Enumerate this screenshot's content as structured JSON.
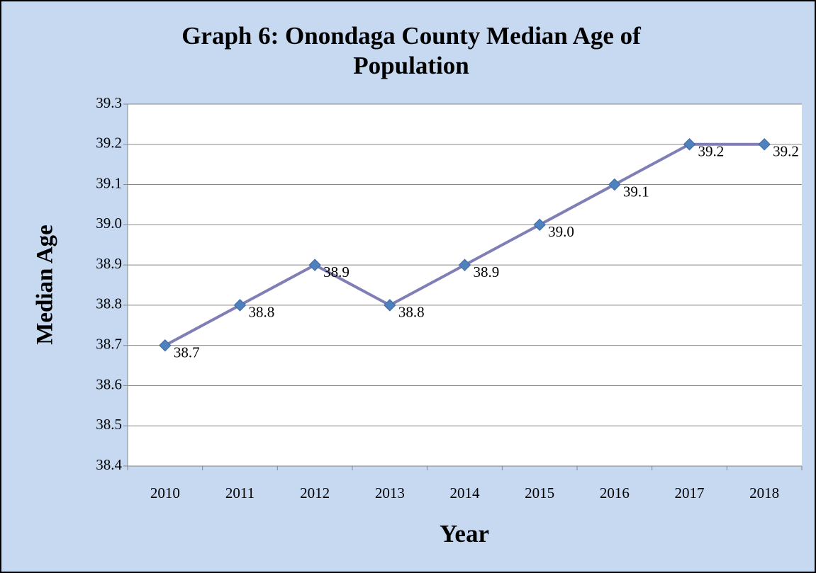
{
  "chart_data": {
    "type": "line",
    "title": "Graph 6:  Onondaga County Median Age of Population",
    "x_label": "Year",
    "y_label": "Median Age",
    "categories": [
      "2010",
      "2011",
      "2012",
      "2013",
      "2014",
      "2015",
      "2016",
      "2017",
      "2018"
    ],
    "series": [
      {
        "name": "Median Age",
        "color": "#7f7fb5",
        "marker_color": "#4f81bd",
        "values": [
          38.7,
          38.8,
          38.9,
          38.8,
          38.9,
          39.0,
          39.1,
          39.2,
          39.2
        ],
        "value_labels": [
          "38.7",
          "38.8",
          "38.9",
          "38.8",
          "38.9",
          "39.0",
          "39.1",
          "39.2",
          "39.2"
        ]
      }
    ],
    "ylim": [
      38.4,
      39.3
    ],
    "yticks": [
      38.4,
      38.5,
      38.6,
      38.7,
      38.8,
      38.9,
      {
        "value": 39,
        "label": "39.0"
      },
      39.1,
      39.2,
      39.3
    ],
    "grid": true,
    "legend": false
  }
}
